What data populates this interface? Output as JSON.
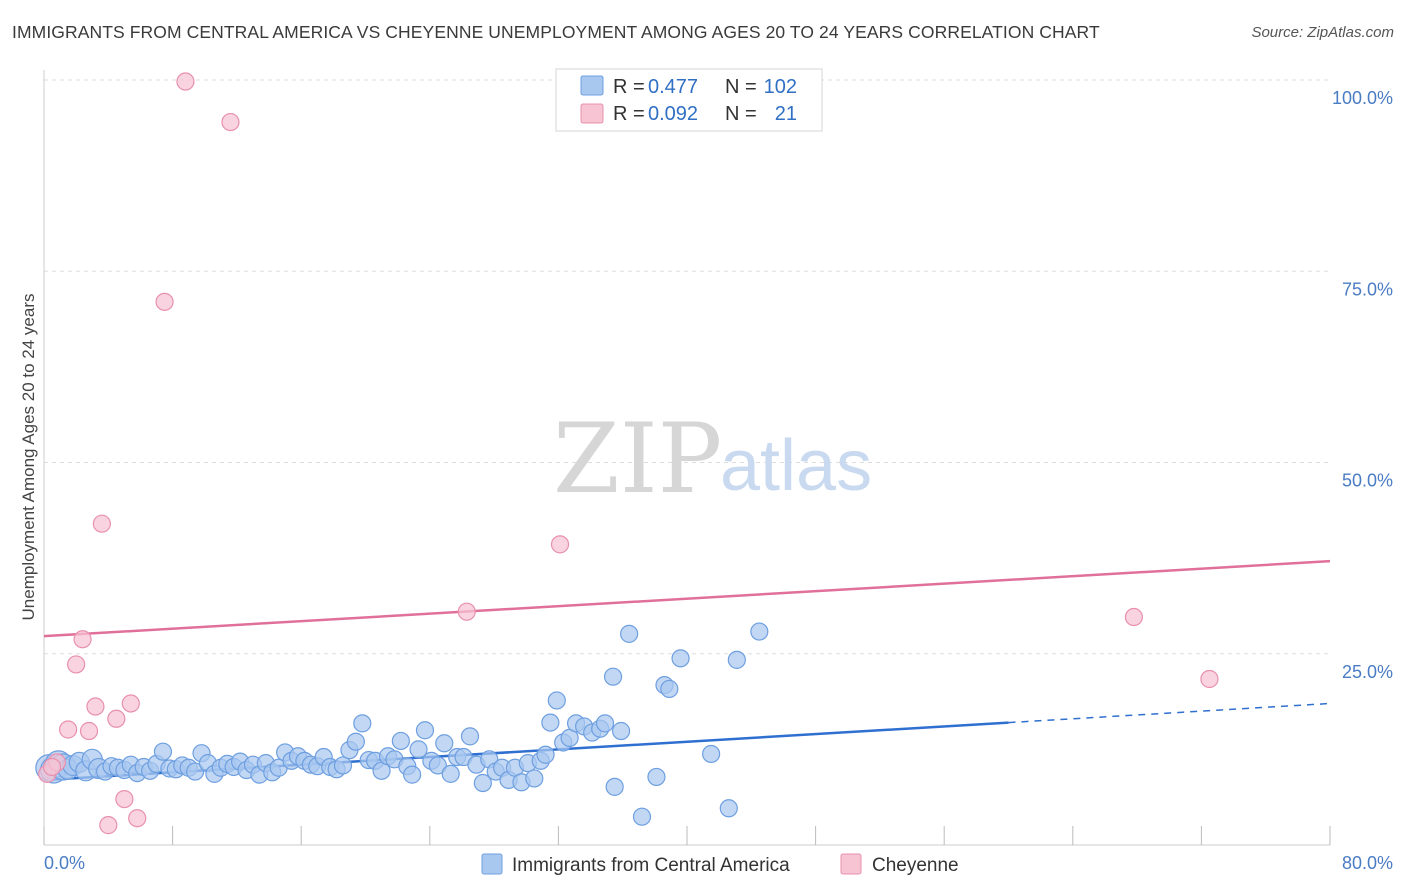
{
  "title": "IMMIGRANTS FROM CENTRAL AMERICA VS CHEYENNE UNEMPLOYMENT AMONG AGES 20 TO 24 YEARS CORRELATION CHART",
  "source": "Source: ZipAtlas.com",
  "watermark": {
    "zip": "ZIP",
    "atlas": "atlas"
  },
  "colors": {
    "blue_fill": "#a9c8f0",
    "blue_stroke": "#6e9fe0",
    "blue_line": "#2f6fd0",
    "pink_fill": "#f7c4d4",
    "pink_stroke": "#e890ad",
    "pink_line": "#e0709a",
    "grid": "#dddddd",
    "tick_label": "#4a7cc4"
  },
  "legend": {
    "rows": [
      {
        "r_label": "R =",
        "r_value": "0.477",
        "n_label": "N =",
        "n_value": "102"
      },
      {
        "r_label": "R =",
        "r_value": "0.092",
        "n_label": "N =",
        "n_value": "21"
      }
    ]
  },
  "chart_data": {
    "type": "scatter",
    "title": "IMMIGRANTS FROM CENTRAL AMERICA VS CHEYENNE UNEMPLOYMENT AMONG AGES 20 TO 24 YEARS CORRELATION CHART",
    "xlabel": "",
    "ylabel": "Unemployment Among Ages 20 to 24 years",
    "xlim": [
      0,
      80
    ],
    "ylim": [
      0,
      100
    ],
    "x_tick_labels": [
      "0.0%",
      "80.0%"
    ],
    "y_ticks": [
      25,
      50,
      75,
      100
    ],
    "y_tick_labels": [
      "25.0%",
      "50.0%",
      "75.0%",
      "100.0%"
    ],
    "grid": true,
    "legend_position": "bottom",
    "series": [
      {
        "name": "Immigrants from Central America",
        "color": "blue",
        "r": 0.477,
        "n": 102,
        "trend": {
          "x0": 0,
          "y0": 8.5,
          "x1": 60,
          "y1": 16.0,
          "dash_to_x": 80,
          "dash_to_y": 18.5
        },
        "points": [
          [
            0.3,
            10.1
          ],
          [
            0.6,
            9.8
          ],
          [
            0.9,
            10.6
          ],
          [
            1.2,
            10.2
          ],
          [
            1.5,
            9.9
          ],
          [
            1.8,
            10.4
          ],
          [
            2.2,
            10.8
          ],
          [
            2.6,
            9.7
          ],
          [
            3.0,
            11.2
          ],
          [
            3.4,
            10.0
          ],
          [
            3.8,
            9.6
          ],
          [
            4.2,
            10.3
          ],
          [
            4.6,
            10.1
          ],
          [
            5.0,
            9.8
          ],
          [
            5.4,
            10.5
          ],
          [
            5.8,
            9.4
          ],
          [
            6.2,
            10.2
          ],
          [
            6.6,
            9.7
          ],
          [
            7.0,
            10.6
          ],
          [
            7.4,
            12.2
          ],
          [
            7.8,
            10.0
          ],
          [
            8.2,
            9.9
          ],
          [
            8.6,
            10.4
          ],
          [
            9.0,
            10.1
          ],
          [
            9.4,
            9.6
          ],
          [
            9.8,
            12.0
          ],
          [
            10.2,
            10.7
          ],
          [
            10.6,
            9.3
          ],
          [
            11.0,
            10.1
          ],
          [
            11.4,
            10.6
          ],
          [
            11.8,
            10.2
          ],
          [
            12.2,
            10.9
          ],
          [
            12.6,
            9.8
          ],
          [
            13.0,
            10.5
          ],
          [
            13.4,
            9.2
          ],
          [
            13.8,
            10.7
          ],
          [
            14.2,
            9.5
          ],
          [
            14.6,
            10.1
          ],
          [
            15.0,
            12.1
          ],
          [
            15.4,
            11.0
          ],
          [
            15.8,
            11.6
          ],
          [
            16.2,
            11.0
          ],
          [
            16.6,
            10.5
          ],
          [
            17.0,
            10.3
          ],
          [
            17.4,
            11.5
          ],
          [
            17.8,
            10.2
          ],
          [
            18.2,
            9.9
          ],
          [
            18.6,
            10.4
          ],
          [
            19.0,
            12.4
          ],
          [
            19.4,
            13.5
          ],
          [
            19.8,
            15.9
          ],
          [
            20.2,
            11.1
          ],
          [
            20.6,
            11.0
          ],
          [
            21.0,
            9.7
          ],
          [
            21.4,
            11.6
          ],
          [
            21.8,
            11.2
          ],
          [
            22.2,
            13.6
          ],
          [
            22.6,
            10.3
          ],
          [
            22.9,
            9.2
          ],
          [
            23.3,
            12.5
          ],
          [
            23.7,
            15.0
          ],
          [
            24.1,
            11.0
          ],
          [
            24.5,
            10.4
          ],
          [
            24.9,
            13.3
          ],
          [
            25.3,
            9.3
          ],
          [
            25.7,
            11.5
          ],
          [
            26.1,
            11.5
          ],
          [
            26.5,
            14.2
          ],
          [
            26.9,
            10.5
          ],
          [
            27.3,
            8.1
          ],
          [
            27.7,
            11.2
          ],
          [
            28.1,
            9.6
          ],
          [
            28.5,
            10.1
          ],
          [
            28.9,
            8.5
          ],
          [
            29.3,
            10.1
          ],
          [
            29.7,
            8.2
          ],
          [
            30.1,
            10.7
          ],
          [
            30.5,
            8.7
          ],
          [
            30.9,
            11.0
          ],
          [
            31.2,
            11.8
          ],
          [
            31.5,
            16.0
          ],
          [
            31.9,
            18.9
          ],
          [
            32.3,
            13.4
          ],
          [
            32.7,
            14.0
          ],
          [
            33.1,
            15.9
          ],
          [
            33.6,
            15.5
          ],
          [
            34.1,
            14.7
          ],
          [
            34.6,
            15.2
          ],
          [
            34.9,
            15.9
          ],
          [
            35.4,
            22.0
          ],
          [
            35.5,
            7.6
          ],
          [
            35.9,
            14.9
          ],
          [
            36.4,
            27.6
          ],
          [
            37.2,
            3.7
          ],
          [
            38.1,
            8.9
          ],
          [
            38.6,
            20.9
          ],
          [
            38.9,
            20.4
          ],
          [
            39.6,
            24.4
          ],
          [
            41.5,
            11.9
          ],
          [
            42.6,
            4.8
          ],
          [
            43.1,
            24.2
          ],
          [
            44.5,
            27.9
          ]
        ]
      },
      {
        "name": "Cheyenne",
        "color": "pink",
        "r": 0.092,
        "n": 21,
        "trend": {
          "x0": 0,
          "y0": 27.3,
          "x1": 80,
          "y1": 37.1
        },
        "points": [
          [
            0.2,
            9.3
          ],
          [
            0.8,
            10.8
          ],
          [
            1.5,
            15.1
          ],
          [
            2.0,
            23.6
          ],
          [
            2.4,
            26.9
          ],
          [
            2.8,
            14.9
          ],
          [
            3.2,
            18.1
          ],
          [
            3.6,
            42.0
          ],
          [
            4.0,
            2.6
          ],
          [
            4.5,
            16.5
          ],
          [
            5.0,
            6.0
          ],
          [
            5.4,
            18.5
          ],
          [
            5.8,
            3.5
          ],
          [
            7.5,
            71.0
          ],
          [
            8.8,
            99.8
          ],
          [
            11.6,
            94.5
          ],
          [
            26.3,
            30.5
          ],
          [
            32.1,
            39.3
          ],
          [
            67.8,
            29.8
          ],
          [
            72.5,
            21.7
          ],
          [
            0.5,
            10.2
          ]
        ]
      }
    ]
  },
  "bottom_legend": {
    "items": [
      {
        "label": "Immigrants from Central America"
      },
      {
        "label": "Cheyenne"
      }
    ]
  }
}
